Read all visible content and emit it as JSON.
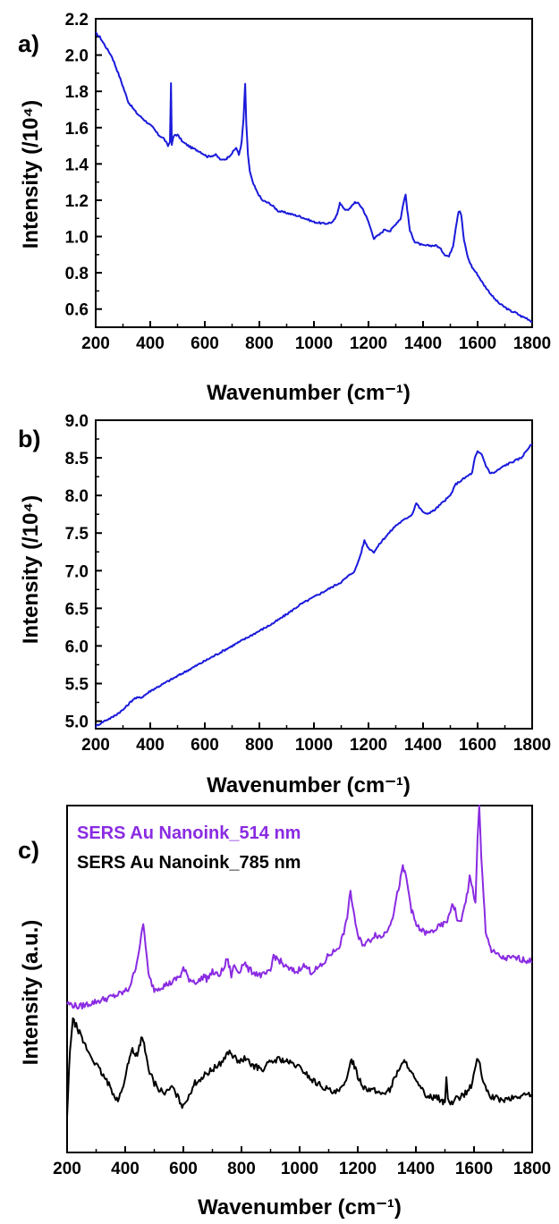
{
  "chart_data": [
    {
      "panel": "a)",
      "type": "line",
      "xlabel": "Wavenumber (cm⁻¹)",
      "ylabel": "Intensity (/10⁴)",
      "xlim": [
        200,
        1800
      ],
      "ylim": [
        0.5,
        2.2
      ],
      "xticks": [
        "200",
        "400",
        "600",
        "800",
        "1000",
        "1200",
        "1400",
        "1600",
        "1800"
      ],
      "yticks": [
        "0.6",
        "0.8",
        "1.0",
        "1.2",
        "1.4",
        "1.6",
        "1.8",
        "2.0",
        "2.2"
      ],
      "grid": false,
      "color": "#1a1adb",
      "series": [
        {
          "x": [
            200,
            215,
            235,
            260,
            290,
            320,
            350,
            380,
            410,
            430,
            450,
            465,
            472,
            476,
            479,
            483,
            490,
            500,
            520,
            550,
            580,
            610,
            640,
            660,
            680,
            700,
            715,
            725,
            735,
            742,
            748,
            752,
            758,
            765,
            775,
            790,
            810,
            840,
            870,
            900,
            950,
            1000,
            1040,
            1070,
            1085,
            1095,
            1110,
            1130,
            1150,
            1165,
            1180,
            1200,
            1220,
            1240,
            1260,
            1280,
            1300,
            1318,
            1330,
            1336,
            1342,
            1352,
            1370,
            1400,
            1430,
            1450,
            1465,
            1480,
            1495,
            1510,
            1520,
            1530,
            1535,
            1540,
            1550,
            1565,
            1580,
            1600,
            1620,
            1640,
            1660,
            1680,
            1700,
            1720,
            1740,
            1760,
            1780,
            1800
          ],
          "y": [
            2.12,
            2.1,
            2.05,
            1.99,
            1.87,
            1.74,
            1.68,
            1.64,
            1.6,
            1.56,
            1.54,
            1.5,
            1.52,
            1.85,
            1.5,
            1.54,
            1.56,
            1.56,
            1.52,
            1.49,
            1.47,
            1.44,
            1.45,
            1.42,
            1.43,
            1.46,
            1.49,
            1.45,
            1.52,
            1.65,
            1.84,
            1.62,
            1.45,
            1.36,
            1.3,
            1.25,
            1.2,
            1.18,
            1.14,
            1.13,
            1.11,
            1.08,
            1.07,
            1.08,
            1.12,
            1.19,
            1.15,
            1.15,
            1.19,
            1.18,
            1.15,
            1.08,
            0.99,
            1.01,
            1.04,
            1.03,
            1.07,
            1.1,
            1.2,
            1.23,
            1.15,
            1.03,
            0.97,
            0.95,
            0.95,
            0.95,
            0.93,
            0.9,
            0.89,
            0.95,
            1.05,
            1.14,
            1.14,
            1.12,
            0.98,
            0.88,
            0.83,
            0.79,
            0.74,
            0.7,
            0.66,
            0.63,
            0.61,
            0.59,
            0.58,
            0.56,
            0.55,
            0.53
          ]
        }
      ]
    },
    {
      "panel": "b)",
      "type": "line",
      "xlabel": "Wavenumber (cm⁻¹)",
      "ylabel": "Intensity (/10⁴)",
      "xlim": [
        200,
        1800
      ],
      "ylim": [
        4.9,
        9.0
      ],
      "xticks": [
        "200",
        "400",
        "600",
        "800",
        "1000",
        "1200",
        "1400",
        "1600",
        "1800"
      ],
      "yticks": [
        "5.0",
        "5.5",
        "6.0",
        "6.5",
        "7.0",
        "7.5",
        "8.0",
        "8.5",
        "9.0"
      ],
      "grid": false,
      "color": "#1a1adb",
      "series": [
        {
          "x": [
            200,
            230,
            260,
            300,
            340,
            370,
            400,
            450,
            500,
            550,
            600,
            650,
            700,
            750,
            800,
            850,
            900,
            950,
            1000,
            1050,
            1100,
            1150,
            1170,
            1185,
            1200,
            1220,
            1250,
            1300,
            1340,
            1360,
            1375,
            1390,
            1410,
            1440,
            1470,
            1500,
            1520,
            1540,
            1560,
            1580,
            1590,
            1600,
            1615,
            1630,
            1645,
            1660,
            1680,
            1700,
            1730,
            1760,
            1790,
            1800
          ],
          "y": [
            4.93,
            5.0,
            5.05,
            5.15,
            5.3,
            5.32,
            5.4,
            5.5,
            5.6,
            5.7,
            5.8,
            5.9,
            6.0,
            6.1,
            6.2,
            6.3,
            6.42,
            6.55,
            6.65,
            6.75,
            6.85,
            7.0,
            7.2,
            7.4,
            7.3,
            7.25,
            7.4,
            7.6,
            7.7,
            7.75,
            7.9,
            7.82,
            7.75,
            7.8,
            7.9,
            8.0,
            8.15,
            8.2,
            8.25,
            8.3,
            8.5,
            8.58,
            8.55,
            8.4,
            8.3,
            8.3,
            8.35,
            8.4,
            8.45,
            8.5,
            8.65,
            8.68
          ]
        }
      ]
    },
    {
      "panel": "c)",
      "type": "line",
      "xlabel": "Wavenumber (cm⁻¹)",
      "ylabel": "Intensity (a.u.)",
      "xlim": [
        200,
        1800
      ],
      "ylim": [
        0,
        100
      ],
      "xticks": [
        "200",
        "400",
        "600",
        "800",
        "1000",
        "1200",
        "1400",
        "1600",
        "1800"
      ],
      "yticks": [],
      "grid": false,
      "series": [
        {
          "name": "SERS Au Nanoink_514 nm",
          "color": "#8a2be2",
          "x": [
            200,
            240,
            280,
            320,
            360,
            390,
            410,
            425,
            440,
            455,
            462,
            470,
            480,
            500,
            530,
            560,
            590,
            600,
            620,
            650,
            670,
            680,
            700,
            720,
            740,
            750,
            760,
            765,
            775,
            790,
            810,
            820,
            840,
            870,
            900,
            910,
            920,
            935,
            945,
            960,
            990,
            1010,
            1030,
            1040,
            1060,
            1080,
            1100,
            1120,
            1140,
            1160,
            1175,
            1185,
            1200,
            1220,
            1240,
            1260,
            1280,
            1300,
            1320,
            1340,
            1355,
            1365,
            1375,
            1385,
            1395,
            1405,
            1420,
            1440,
            1460,
            1480,
            1500,
            1515,
            1525,
            1535,
            1545,
            1560,
            1575,
            1585,
            1595,
            1605,
            1612,
            1618,
            1625,
            1640,
            1660,
            1700,
            1750,
            1800
          ],
          "y": [
            43,
            42,
            43,
            44,
            45,
            46,
            47,
            50,
            55,
            62,
            66,
            60,
            51,
            47,
            48,
            49,
            51,
            53,
            50,
            49,
            51,
            50,
            52,
            51,
            53,
            56,
            53,
            51,
            54,
            52,
            55,
            53,
            52,
            51,
            52,
            57,
            56,
            55,
            54,
            53,
            52,
            54,
            53,
            52,
            53,
            54,
            57,
            58,
            60,
            66,
            75,
            70,
            62,
            60,
            61,
            63,
            62,
            64,
            68,
            76,
            82,
            80,
            75,
            70,
            67,
            65,
            64,
            63,
            64,
            65,
            66,
            68,
            72,
            70,
            66,
            68,
            74,
            79,
            76,
            72,
            90,
            100,
            85,
            64,
            58,
            56,
            56,
            55
          ]
        },
        {
          "name": "SERS Au Nanoink_785 nm",
          "color": "#000000",
          "x": [
            200,
            210,
            220,
            235,
            255,
            280,
            310,
            340,
            360,
            375,
            390,
            405,
            415,
            425,
            435,
            445,
            455,
            465,
            480,
            500,
            520,
            540,
            560,
            580,
            600,
            615,
            640,
            670,
            700,
            720,
            740,
            755,
            770,
            790,
            810,
            840,
            870,
            900,
            930,
            960,
            990,
            1020,
            1040,
            1060,
            1080,
            1100,
            1120,
            1140,
            1160,
            1175,
            1185,
            1200,
            1220,
            1250,
            1280,
            1310,
            1340,
            1360,
            1375,
            1390,
            1410,
            1430,
            1450,
            1470,
            1490,
            1500,
            1505,
            1510,
            1515,
            1530,
            1550,
            1570,
            1590,
            1603,
            1610,
            1620,
            1635,
            1660,
            1700,
            1750,
            1800
          ],
          "y": [
            10,
            30,
            38,
            36,
            32,
            28,
            24,
            20,
            17,
            15,
            18,
            24,
            27,
            30,
            28,
            29,
            33,
            31,
            24,
            20,
            18,
            17,
            19,
            16,
            13,
            16,
            20,
            22,
            24,
            25,
            27,
            29,
            28,
            26,
            27,
            25,
            24,
            26,
            27,
            26,
            25,
            23,
            21,
            20,
            19,
            18,
            17,
            18,
            20,
            27,
            26,
            22,
            19,
            18,
            17,
            18,
            24,
            26,
            25,
            22,
            19,
            17,
            16,
            16,
            15,
            14,
            22,
            16,
            14,
            15,
            16,
            17,
            19,
            24,
            27,
            25,
            19,
            16,
            15,
            16,
            17
          ]
        }
      ]
    }
  ]
}
